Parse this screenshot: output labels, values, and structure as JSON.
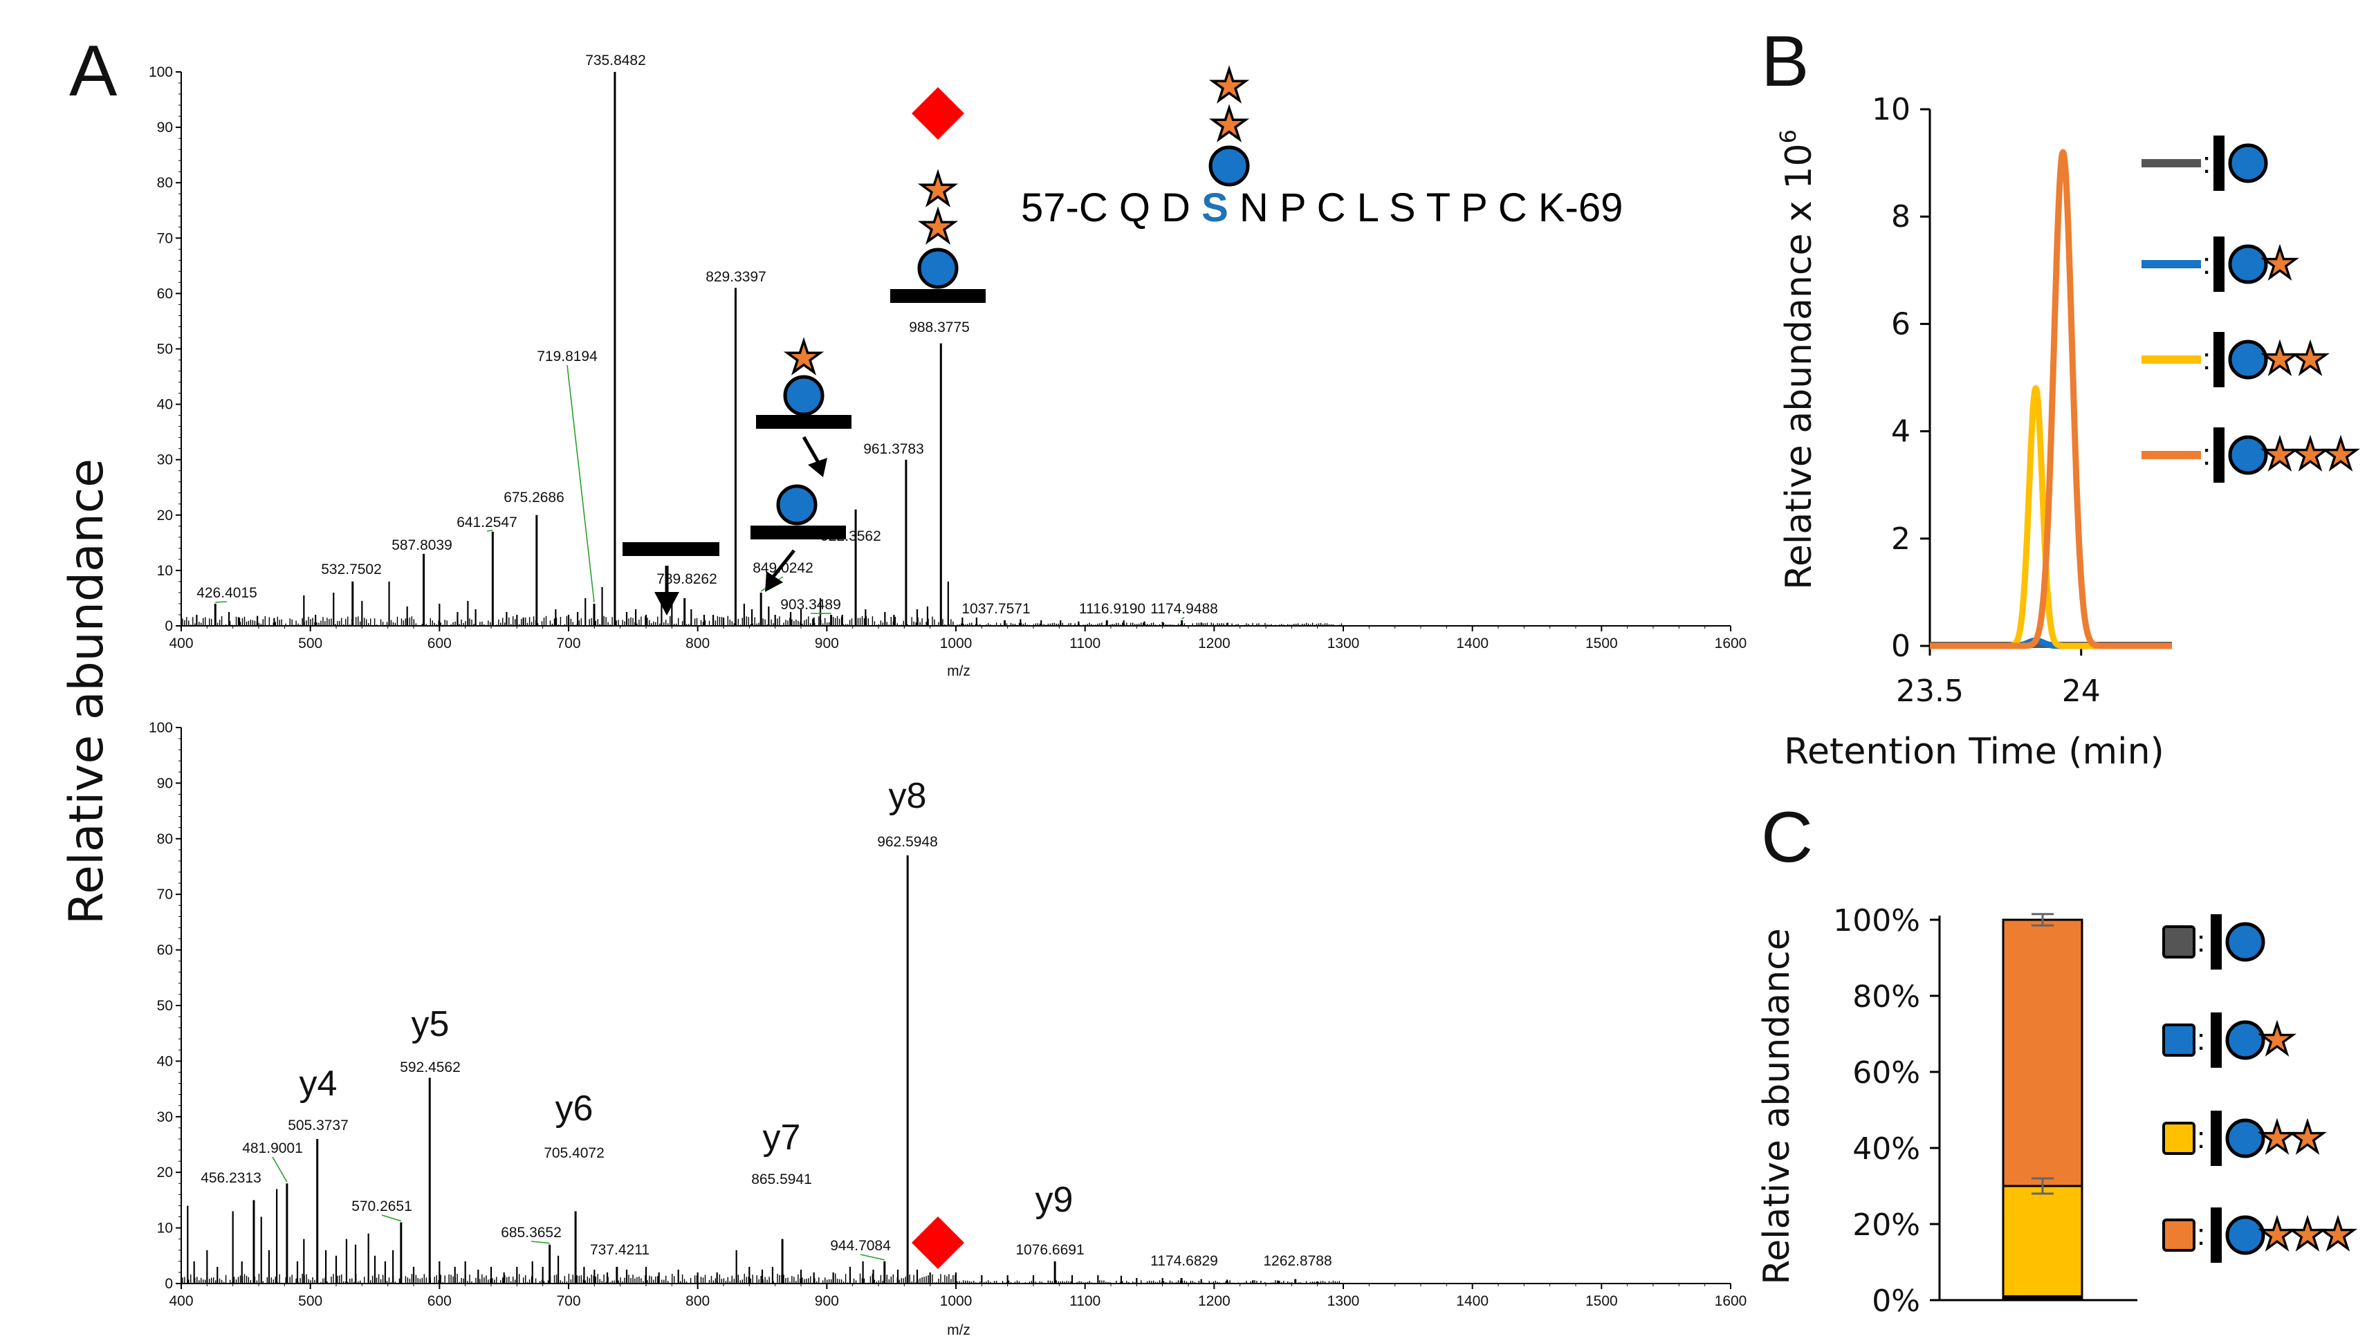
{
  "panels": {
    "a_label": "A",
    "b_label": "B",
    "c_label": "C"
  },
  "shared_ylabel": "Relative abundance",
  "peptide": {
    "prefix": "57-",
    "before": "C Q D ",
    "site": "S",
    "after": " N P C L S T P C K",
    "suffix": "-69",
    "site_color": "#1f73b8"
  },
  "colors": {
    "gray": "#555555",
    "blue": "#1874c6",
    "yellow": "#ffc000",
    "orange": "#ed7d31",
    "hexnac_circle": "#1874c6",
    "star": "#ed7d31",
    "diamond": "#ff0000",
    "green_leader": "#2ca02c"
  },
  "chart_data": [
    {
      "id": "A-top",
      "type": "bar",
      "title": "",
      "xlabel": "m/z",
      "ylabel": "",
      "xlim": [
        400,
        1600
      ],
      "ylim": [
        0,
        100
      ],
      "xticks": [
        400,
        500,
        600,
        700,
        800,
        900,
        1000,
        1100,
        1200,
        1300,
        1400,
        1500,
        1600
      ],
      "yticks": [
        0,
        10,
        20,
        30,
        40,
        50,
        60,
        70,
        80,
        90,
        100
      ],
      "labeled_peaks": [
        {
          "mz": 426.4015,
          "label": "426.4015",
          "intensity": 4
        },
        {
          "mz": 532.7502,
          "label": "532.7502",
          "intensity": 8
        },
        {
          "mz": 587.8039,
          "label": "587.8039",
          "intensity": 13
        },
        {
          "mz": 641.2547,
          "label": "641.2547",
          "intensity": 17
        },
        {
          "mz": 675.2686,
          "label": "675.2686",
          "intensity": 20
        },
        {
          "mz": 719.8194,
          "label": "719.8194",
          "intensity": 4
        },
        {
          "mz": 735.8482,
          "label": "735.8482",
          "intensity": 100
        },
        {
          "mz": 789.8262,
          "label": "789.8262",
          "intensity": 5
        },
        {
          "mz": 829.3397,
          "label": "829.3397",
          "intensity": 61
        },
        {
          "mz": 849.0242,
          "label": "849.0242",
          "intensity": 6
        },
        {
          "mz": 903.3489,
          "label": "903.3489",
          "intensity": 2
        },
        {
          "mz": 922.3562,
          "label": "922.3562",
          "intensity": 21
        },
        {
          "mz": 961.3783,
          "label": "961.3783",
          "intensity": 30
        },
        {
          "mz": 988.3775,
          "label": "988.3775",
          "intensity": 51
        },
        {
          "mz": 1037.7571,
          "label": "1037.7571",
          "intensity": 1
        },
        {
          "mz": 1116.919,
          "label": "1116.9190",
          "intensity": 1
        },
        {
          "mz": 1174.9488,
          "label": "1174.9488",
          "intensity": 1
        }
      ],
      "unlabeled_peaks": [
        [
          412,
          2
        ],
        [
          437,
          2.5
        ],
        [
          445,
          1.5
        ],
        [
          459,
          1.8
        ],
        [
          472,
          1.4
        ],
        [
          495,
          5.5
        ],
        [
          504,
          2
        ],
        [
          518,
          6
        ],
        [
          540,
          4.5
        ],
        [
          561,
          8
        ],
        [
          575,
          3.5
        ],
        [
          600,
          4
        ],
        [
          614,
          2.5
        ],
        [
          622,
          4.5
        ],
        [
          628,
          3
        ],
        [
          652,
          2.5
        ],
        [
          660,
          2
        ],
        [
          665,
          1.5
        ],
        [
          690,
          3
        ],
        [
          700,
          2
        ],
        [
          707,
          2.5
        ],
        [
          713,
          5
        ],
        [
          726,
          7
        ],
        [
          745,
          2.5
        ],
        [
          752,
          3
        ],
        [
          760,
          2
        ],
        [
          772,
          4
        ],
        [
          780,
          6
        ],
        [
          795,
          3
        ],
        [
          805,
          2
        ],
        [
          812,
          2
        ],
        [
          820,
          1.5
        ],
        [
          836,
          4
        ],
        [
          842,
          3
        ],
        [
          855,
          3.5
        ],
        [
          860,
          2
        ],
        [
          872,
          2.5
        ],
        [
          880,
          3
        ],
        [
          890,
          1.5
        ],
        [
          895,
          5
        ],
        [
          912,
          2
        ],
        [
          930,
          3
        ],
        [
          945,
          2.5
        ],
        [
          952,
          2
        ],
        [
          970,
          3
        ],
        [
          978,
          3.5
        ],
        [
          994,
          8
        ],
        [
          1005,
          1.5
        ],
        [
          1016,
          1.5
        ],
        [
          1050,
          1.2
        ],
        [
          1066,
          1
        ],
        [
          1081,
          1
        ],
        [
          1095,
          0.8
        ],
        [
          1130,
          1
        ],
        [
          1146,
          0.8
        ],
        [
          1160,
          0.7
        ],
        [
          1190,
          0.6
        ],
        [
          1210,
          0.5
        ]
      ],
      "annotations": [
        "diamond above 988.3775 (loss of glycan)",
        "peptide with HexNAc + 2 stars above 988.3775",
        "peptide with HexNAc + star at 829.3397",
        "peptide with HexNAc at 922.3562",
        "bare peptide near 789.8262"
      ]
    },
    {
      "id": "A-bottom",
      "type": "bar",
      "title": "",
      "xlabel": "m/z",
      "ylabel": "",
      "xlim": [
        400,
        1600
      ],
      "ylim": [
        0,
        100
      ],
      "xticks": [
        400,
        500,
        600,
        700,
        800,
        900,
        1000,
        1100,
        1200,
        1300,
        1400,
        1500,
        1600
      ],
      "yticks": [
        0,
        10,
        20,
        30,
        40,
        50,
        60,
        70,
        80,
        90,
        100
      ],
      "labeled_peaks": [
        {
          "mz": 456.2313,
          "label": "456.2313",
          "intensity": 15
        },
        {
          "mz": 481.9001,
          "label": "481.9001",
          "intensity": 18
        },
        {
          "mz": 505.3737,
          "label": "505.3737",
          "intensity": 26,
          "ion": "y4"
        },
        {
          "mz": 570.2651,
          "label": "570.2651",
          "intensity": 11
        },
        {
          "mz": 592.4562,
          "label": "592.4562",
          "intensity": 37,
          "ion": "y5"
        },
        {
          "mz": 685.3652,
          "label": "685.3652",
          "intensity": 7
        },
        {
          "mz": 705.4072,
          "label": "705.4072",
          "intensity": 13,
          "ion": "y6"
        },
        {
          "mz": 737.4211,
          "label": "737.4211",
          "intensity": 3
        },
        {
          "mz": 865.5941,
          "label": "865.5941",
          "intensity": 8,
          "ion": "y7"
        },
        {
          "mz": 944.7084,
          "label": "944.7084",
          "intensity": 4
        },
        {
          "mz": 962.5948,
          "label": "962.5948",
          "intensity": 77,
          "ion": "y8"
        },
        {
          "mz": 1076.6691,
          "label": "1076.6691",
          "intensity": 4,
          "ion": "y9"
        },
        {
          "mz": 1174.6829,
          "label": "1174.6829",
          "intensity": 1
        },
        {
          "mz": 1262.8788,
          "label": "1262.8788",
          "intensity": 0.8
        }
      ],
      "unlabeled_peaks": [
        [
          405,
          14
        ],
        [
          410,
          4
        ],
        [
          420,
          6
        ],
        [
          428,
          3
        ],
        [
          440,
          13
        ],
        [
          447,
          4
        ],
        [
          462,
          12
        ],
        [
          468,
          6
        ],
        [
          474,
          17
        ],
        [
          490,
          4
        ],
        [
          495,
          8
        ],
        [
          512,
          6
        ],
        [
          520,
          5
        ],
        [
          528,
          8
        ],
        [
          535,
          7
        ],
        [
          545,
          9
        ],
        [
          550,
          5
        ],
        [
          558,
          4
        ],
        [
          564,
          6
        ],
        [
          580,
          3
        ],
        [
          600,
          4
        ],
        [
          612,
          3
        ],
        [
          620,
          4
        ],
        [
          630,
          2.5
        ],
        [
          640,
          3
        ],
        [
          650,
          2
        ],
        [
          660,
          3
        ],
        [
          672,
          4
        ],
        [
          680,
          3
        ],
        [
          692,
          5
        ],
        [
          712,
          3
        ],
        [
          720,
          2.5
        ],
        [
          730,
          2
        ],
        [
          745,
          2.5
        ],
        [
          760,
          3
        ],
        [
          770,
          2
        ],
        [
          785,
          2.5
        ],
        [
          800,
          2
        ],
        [
          815,
          2
        ],
        [
          830,
          6
        ],
        [
          840,
          3
        ],
        [
          850,
          2.5
        ],
        [
          858,
          3
        ],
        [
          880,
          2.5
        ],
        [
          890,
          2
        ],
        [
          905,
          2
        ],
        [
          918,
          3
        ],
        [
          928,
          4
        ],
        [
          936,
          2.5
        ],
        [
          955,
          2.5
        ],
        [
          970,
          2.5
        ],
        [
          980,
          2
        ],
        [
          1000,
          2
        ],
        [
          1020,
          1.5
        ],
        [
          1040,
          1.5
        ],
        [
          1060,
          1.5
        ],
        [
          1090,
          1.5
        ],
        [
          1110,
          1.5
        ],
        [
          1128,
          1.4
        ],
        [
          1140,
          1
        ],
        [
          1160,
          1
        ],
        [
          1190,
          0.8
        ],
        [
          1210,
          0.7
        ],
        [
          1230,
          0.6
        ],
        [
          1250,
          0.5
        ],
        [
          1280,
          0.4
        ]
      ],
      "ions": [
        "y4",
        "y5",
        "y6",
        "y7",
        "y8",
        "y9"
      ]
    },
    {
      "id": "B",
      "type": "line",
      "title": "",
      "xlabel": "Retention Time (min)",
      "ylabel": "Relative abundance x 10",
      "ylabel_exponent": "6",
      "xlim": [
        23.5,
        24.3
      ],
      "ylim": [
        0,
        10
      ],
      "xticks": [
        23.5,
        24
      ],
      "xtick_labels": [
        "23.5",
        "24"
      ],
      "yticks": [
        0,
        2,
        4,
        6,
        8,
        10
      ],
      "series": [
        {
          "name": "peptide",
          "color": "#555555",
          "x": [
            23.5,
            24.3
          ],
          "y": [
            0.02,
            0.02
          ]
        },
        {
          "name": "peptide + HexNAc",
          "color": "#1874c6",
          "x": [
            23.5,
            23.8,
            23.85,
            23.88,
            23.95,
            24.3
          ],
          "y": [
            0,
            0,
            0.1,
            0.05,
            0,
            0
          ]
        },
        {
          "name": "peptide + HexNAc + 1 star",
          "color": "#ffc000",
          "x": [
            23.5,
            23.76,
            23.8,
            23.83,
            23.85,
            23.87,
            23.9,
            23.93,
            24.3
          ],
          "y": [
            0,
            0.02,
            0.5,
            2.8,
            4.8,
            3.0,
            0.4,
            0.02,
            0
          ]
        },
        {
          "name": "peptide + HexNAc + 2 stars",
          "color": "#ed7d31",
          "x": [
            23.5,
            23.84,
            23.88,
            23.91,
            23.94,
            23.97,
            24.0,
            24.04,
            24.1,
            24.3
          ],
          "y": [
            0,
            0.05,
            1.0,
            5.5,
            9.2,
            5.8,
            1.5,
            0.3,
            0.05,
            0
          ]
        }
      ]
    },
    {
      "id": "C",
      "type": "bar",
      "stacked": true,
      "title": "",
      "xlabel": "",
      "ylabel": "Relative abundance",
      "ylim": [
        0,
        100
      ],
      "yticks": [
        0,
        20,
        40,
        60,
        80,
        100
      ],
      "ytick_labels": [
        "0%",
        "20%",
        "40%",
        "60%",
        "80%",
        "100%"
      ],
      "categories": [
        ""
      ],
      "series": [
        {
          "name": "peptide",
          "color": "#555555",
          "values": [
            0.5
          ]
        },
        {
          "name": "peptide + HexNAc",
          "color": "#1874c6",
          "values": [
            0.5
          ]
        },
        {
          "name": "peptide + HexNAc + 1 star",
          "color": "#ffc000",
          "values": [
            29
          ]
        },
        {
          "name": "peptide + HexNAc + 2 stars",
          "color": "#ed7d31",
          "values": [
            70
          ]
        }
      ],
      "error_bars": [
        {
          "at": 30,
          "err": 2
        },
        {
          "at": 100,
          "err": 1.5
        }
      ]
    }
  ]
}
